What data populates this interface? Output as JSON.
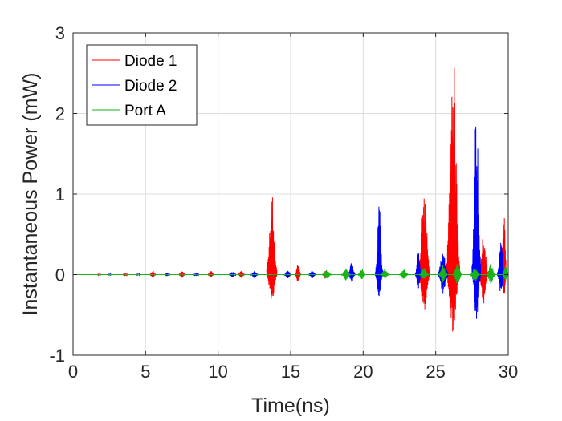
{
  "chart_data": {
    "type": "line",
    "xlabel": "Time(ns)",
    "ylabel": "Instantaneous Power (mW)",
    "xlim": [
      0,
      30
    ],
    "ylim": [
      -1,
      3
    ],
    "x_ticks": [
      0,
      5,
      10,
      15,
      20,
      25,
      30
    ],
    "x_tick_labels": [
      "0",
      "5",
      "10",
      "15",
      "20",
      "25",
      "30"
    ],
    "y_ticks": [
      -1,
      0,
      1,
      2,
      3
    ],
    "y_tick_labels": [
      "-1",
      "0",
      "1",
      "2",
      "3"
    ],
    "grid": true,
    "legend_position": "top-left",
    "series": [
      {
        "name": "Diode 1",
        "color": "#ff0000",
        "bursts": [
          {
            "t": 1.8,
            "w": 0.25,
            "pos": 0.01,
            "neg": -0.01
          },
          {
            "t": 3.6,
            "w": 0.35,
            "pos": 0.02,
            "neg": -0.02
          },
          {
            "t": 5.5,
            "w": 0.4,
            "pos": 0.05,
            "neg": -0.04
          },
          {
            "t": 7.5,
            "w": 0.4,
            "pos": 0.05,
            "neg": -0.04
          },
          {
            "t": 9.5,
            "w": 0.4,
            "pos": 0.05,
            "neg": -0.04
          },
          {
            "t": 11.6,
            "w": 0.45,
            "pos": 0.05,
            "neg": -0.04
          },
          {
            "t": 13.7,
            "w": 0.7,
            "pos": 1.05,
            "neg": -0.35
          },
          {
            "t": 15.5,
            "w": 0.4,
            "pos": 0.15,
            "neg": -0.1
          },
          {
            "t": 17.4,
            "w": 0.4,
            "pos": 0.05,
            "neg": -0.05
          },
          {
            "t": 21.0,
            "w": 0.4,
            "pos": 0.08,
            "neg": -0.08
          },
          {
            "t": 24.2,
            "w": 0.8,
            "pos": 1.05,
            "neg": -0.45
          },
          {
            "t": 26.2,
            "w": 0.9,
            "pos": 2.85,
            "neg": -0.72
          },
          {
            "t": 28.3,
            "w": 0.6,
            "pos": 0.55,
            "neg": -0.4
          },
          {
            "t": 29.7,
            "w": 0.4,
            "pos": 0.8,
            "neg": -0.3
          }
        ]
      },
      {
        "name": "Diode 2",
        "color": "#0000ff",
        "bursts": [
          {
            "t": 2.5,
            "w": 0.3,
            "pos": 0.01,
            "neg": -0.01
          },
          {
            "t": 4.5,
            "w": 0.3,
            "pos": 0.01,
            "neg": -0.01
          },
          {
            "t": 6.5,
            "w": 0.4,
            "pos": 0.02,
            "neg": -0.02
          },
          {
            "t": 8.5,
            "w": 0.4,
            "pos": 0.02,
            "neg": -0.02
          },
          {
            "t": 11.0,
            "w": 0.5,
            "pos": 0.04,
            "neg": -0.03
          },
          {
            "t": 12.5,
            "w": 0.5,
            "pos": 0.05,
            "neg": -0.05
          },
          {
            "t": 14.8,
            "w": 0.5,
            "pos": 0.05,
            "neg": -0.05
          },
          {
            "t": 16.5,
            "w": 0.5,
            "pos": 0.05,
            "neg": -0.05
          },
          {
            "t": 19.2,
            "w": 0.5,
            "pos": 0.15,
            "neg": -0.1
          },
          {
            "t": 21.1,
            "w": 0.5,
            "pos": 0.92,
            "neg": -0.28
          },
          {
            "t": 23.8,
            "w": 0.4,
            "pos": 0.35,
            "neg": -0.2
          },
          {
            "t": 25.5,
            "w": 0.7,
            "pos": 0.3,
            "neg": -0.25
          },
          {
            "t": 27.8,
            "w": 0.6,
            "pos": 2.22,
            "neg": -0.63
          },
          {
            "t": 29.5,
            "w": 0.5,
            "pos": 0.45,
            "neg": -0.25
          }
        ]
      },
      {
        "name": "Port A",
        "color": "#17b317",
        "bursts": [
          {
            "t": 17.5,
            "w": 0.6,
            "pos": 0.06,
            "neg": -0.06
          },
          {
            "t": 18.8,
            "w": 0.6,
            "pos": 0.07,
            "neg": -0.07
          },
          {
            "t": 19.9,
            "w": 0.5,
            "pos": 0.08,
            "neg": -0.06
          },
          {
            "t": 21.5,
            "w": 0.6,
            "pos": 0.07,
            "neg": -0.05
          },
          {
            "t": 22.8,
            "w": 0.6,
            "pos": 0.07,
            "neg": -0.06
          },
          {
            "t": 24.2,
            "w": 0.6,
            "pos": 0.09,
            "neg": -0.07
          },
          {
            "t": 25.5,
            "w": 0.6,
            "pos": 0.12,
            "neg": -0.1
          },
          {
            "t": 26.5,
            "w": 0.6,
            "pos": 0.15,
            "neg": -0.12
          },
          {
            "t": 27.7,
            "w": 0.6,
            "pos": 0.1,
            "neg": -0.1
          },
          {
            "t": 28.8,
            "w": 0.6,
            "pos": 0.14,
            "neg": -0.12
          },
          {
            "t": 29.8,
            "w": 0.4,
            "pos": 0.12,
            "neg": -0.1
          }
        ]
      }
    ]
  }
}
